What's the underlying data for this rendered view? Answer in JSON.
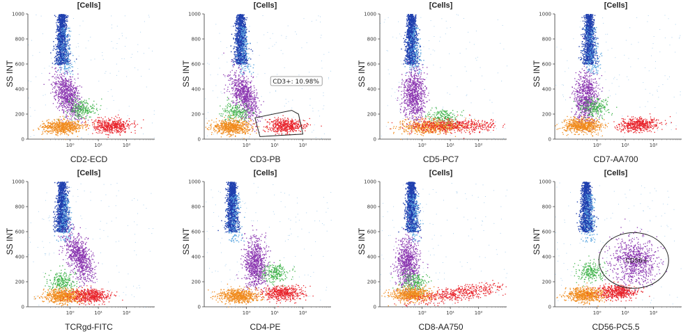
{
  "chart_data": [
    {
      "type": "scatter",
      "title": "[Cells]",
      "xlabel": "CD2-ECD",
      "ylabel": "SS INT",
      "ylim": [
        0,
        1000
      ],
      "yticks": [
        "0",
        "200",
        "400",
        "600",
        "800",
        "1000"
      ],
      "xticks": [
        "10⁰",
        "10¹",
        "10²"
      ],
      "xscale": "log"
    },
    {
      "type": "scatter",
      "title": "[Cells]",
      "xlabel": "CD3-PB",
      "ylabel": "SS INT",
      "ylim": [
        0,
        1000
      ],
      "yticks": [
        "0",
        "200",
        "400",
        "600",
        "800",
        "1000"
      ],
      "xticks": [
        "10⁰",
        "10¹",
        "10²"
      ],
      "xscale": "log",
      "gate": {
        "label": "CD3+: 10.98%"
      }
    },
    {
      "type": "scatter",
      "title": "[Cells]",
      "xlabel": "CD5-PC7",
      "ylabel": "SS INT",
      "ylim": [
        0,
        1000
      ],
      "yticks": [
        "0",
        "200",
        "400",
        "600",
        "800",
        "1000"
      ],
      "xticks": [
        "10⁰",
        "10¹",
        "10²"
      ],
      "xscale": "log"
    },
    {
      "type": "scatter",
      "title": "[Cells]",
      "xlabel": "CD7-AA700",
      "ylabel": "SS INT",
      "ylim": [
        0,
        1000
      ],
      "yticks": [
        "0",
        "200",
        "400",
        "600",
        "800",
        "1000"
      ],
      "xticks": [
        "10⁰",
        "10¹",
        "10²"
      ],
      "xscale": "log"
    },
    {
      "type": "scatter",
      "title": "[Cells]",
      "xlabel": "TCRgd-FITC",
      "ylabel": "SS INT",
      "ylim": [
        0,
        1000
      ],
      "yticks": [
        "0",
        "200",
        "400",
        "600",
        "800",
        "1000"
      ],
      "xticks": [
        "10⁰",
        "10¹",
        "10²"
      ],
      "xscale": "log"
    },
    {
      "type": "scatter",
      "title": "[Cells]",
      "xlabel": "CD4-PE",
      "ylabel": "SS INT",
      "ylim": [
        0,
        1000
      ],
      "yticks": [
        "0",
        "200",
        "400",
        "600",
        "800",
        "1000"
      ],
      "xticks": [
        "10⁰",
        "10¹",
        "10²"
      ],
      "xscale": "log"
    },
    {
      "type": "scatter",
      "title": "[Cells]",
      "xlabel": "CD8-AA750",
      "ylabel": "SS INT",
      "ylim": [
        0,
        1000
      ],
      "yticks": [
        "0",
        "200",
        "400",
        "600",
        "800",
        "1000"
      ],
      "xticks": [
        "10⁰",
        "10¹",
        "10²"
      ],
      "xscale": "log"
    },
    {
      "type": "scatter",
      "title": "[Cells]",
      "xlabel": "CD56-PC5.5",
      "ylabel": "SS INT",
      "ylim": [
        0,
        1000
      ],
      "yticks": [
        "0",
        "200",
        "400",
        "600",
        "800",
        "1000"
      ],
      "xticks": [
        "10⁰",
        "10¹",
        "10²"
      ],
      "xscale": "log",
      "gate": {
        "label": "CD56+"
      }
    }
  ],
  "populations": {
    "colors": {
      "blue": "#1f3fae",
      "purple": "#8a35b0",
      "green": "#3fb34a",
      "orange": "#f08a1c",
      "red": "#e8232b",
      "lightblue": "#5aa6e0"
    },
    "per_panel": [
      {
        "blue": {
          "x": 0.5,
          "y": [
            600,
            1000
          ]
        },
        "purple": {
          "x": 0.8,
          "y": 350
        },
        "green": {
          "x": 2.5,
          "y": 240
        },
        "orange": {
          "x": 0.5,
          "y": 100
        },
        "red": {
          "x": 30,
          "y": 110
        }
      },
      {
        "blue": {
          "x": 0.6,
          "y": [
            600,
            1000
          ]
        },
        "purple": {
          "x": 0.8,
          "y": 350
        },
        "green": {
          "x": 0.4,
          "y": 220
        },
        "orange": {
          "x": 0.3,
          "y": 100
        },
        "red": {
          "x": 25,
          "y": 110
        }
      },
      {
        "blue": {
          "x": 0.4,
          "y": [
            600,
            1000
          ]
        },
        "purple": {
          "x": 0.5,
          "y": 350
        },
        "green": {
          "x": 5,
          "y": 180
        },
        "orange": {
          "x": 2,
          "y": 100
        },
        "red": {
          "x": 15,
          "y": 110
        }
      },
      {
        "blue": {
          "x": 0.5,
          "y": [
            600,
            1000
          ]
        },
        "purple": {
          "x": 0.4,
          "y": 330
        },
        "green": {
          "x": 0.8,
          "y": 260
        },
        "orange": {
          "x": 0.3,
          "y": 110
        },
        "red": {
          "x": 30,
          "y": 120
        }
      },
      {
        "blue": {
          "x": 0.5,
          "y": [
            600,
            1000
          ]
        },
        "purple": {
          "x": 2,
          "y": 400
        },
        "green": {
          "x": 0.5,
          "y": 200
        },
        "orange": {
          "x": 0.6,
          "y": 90
        },
        "red": {
          "x": 5,
          "y": 90
        }
      },
      {
        "blue": {
          "x": 0.3,
          "y": [
            600,
            1000
          ]
        },
        "purple": {
          "x": 2,
          "y": 350
        },
        "green": {
          "x": 10,
          "y": 270
        },
        "orange": {
          "x": 0.5,
          "y": 90
        },
        "red": {
          "x": 20,
          "y": 110
        }
      },
      {
        "blue": {
          "x": 0.4,
          "y": [
            600,
            1000
          ]
        },
        "purple": {
          "x": 0.3,
          "y": 350
        },
        "green": {
          "x": 0.5,
          "y": 200
        },
        "orange": {
          "x": 0.4,
          "y": 100
        },
        "red": {
          "x": 20,
          "y": 110
        }
      },
      {
        "blue": {
          "x": 0.4,
          "y": [
            600,
            1000
          ]
        },
        "purple": {
          "x": 20,
          "y": 370
        },
        "green": {
          "x": 0.6,
          "y": 280
        },
        "orange": {
          "x": 0.4,
          "y": 100
        },
        "red": {
          "x": 5,
          "y": 120
        }
      }
    ]
  }
}
